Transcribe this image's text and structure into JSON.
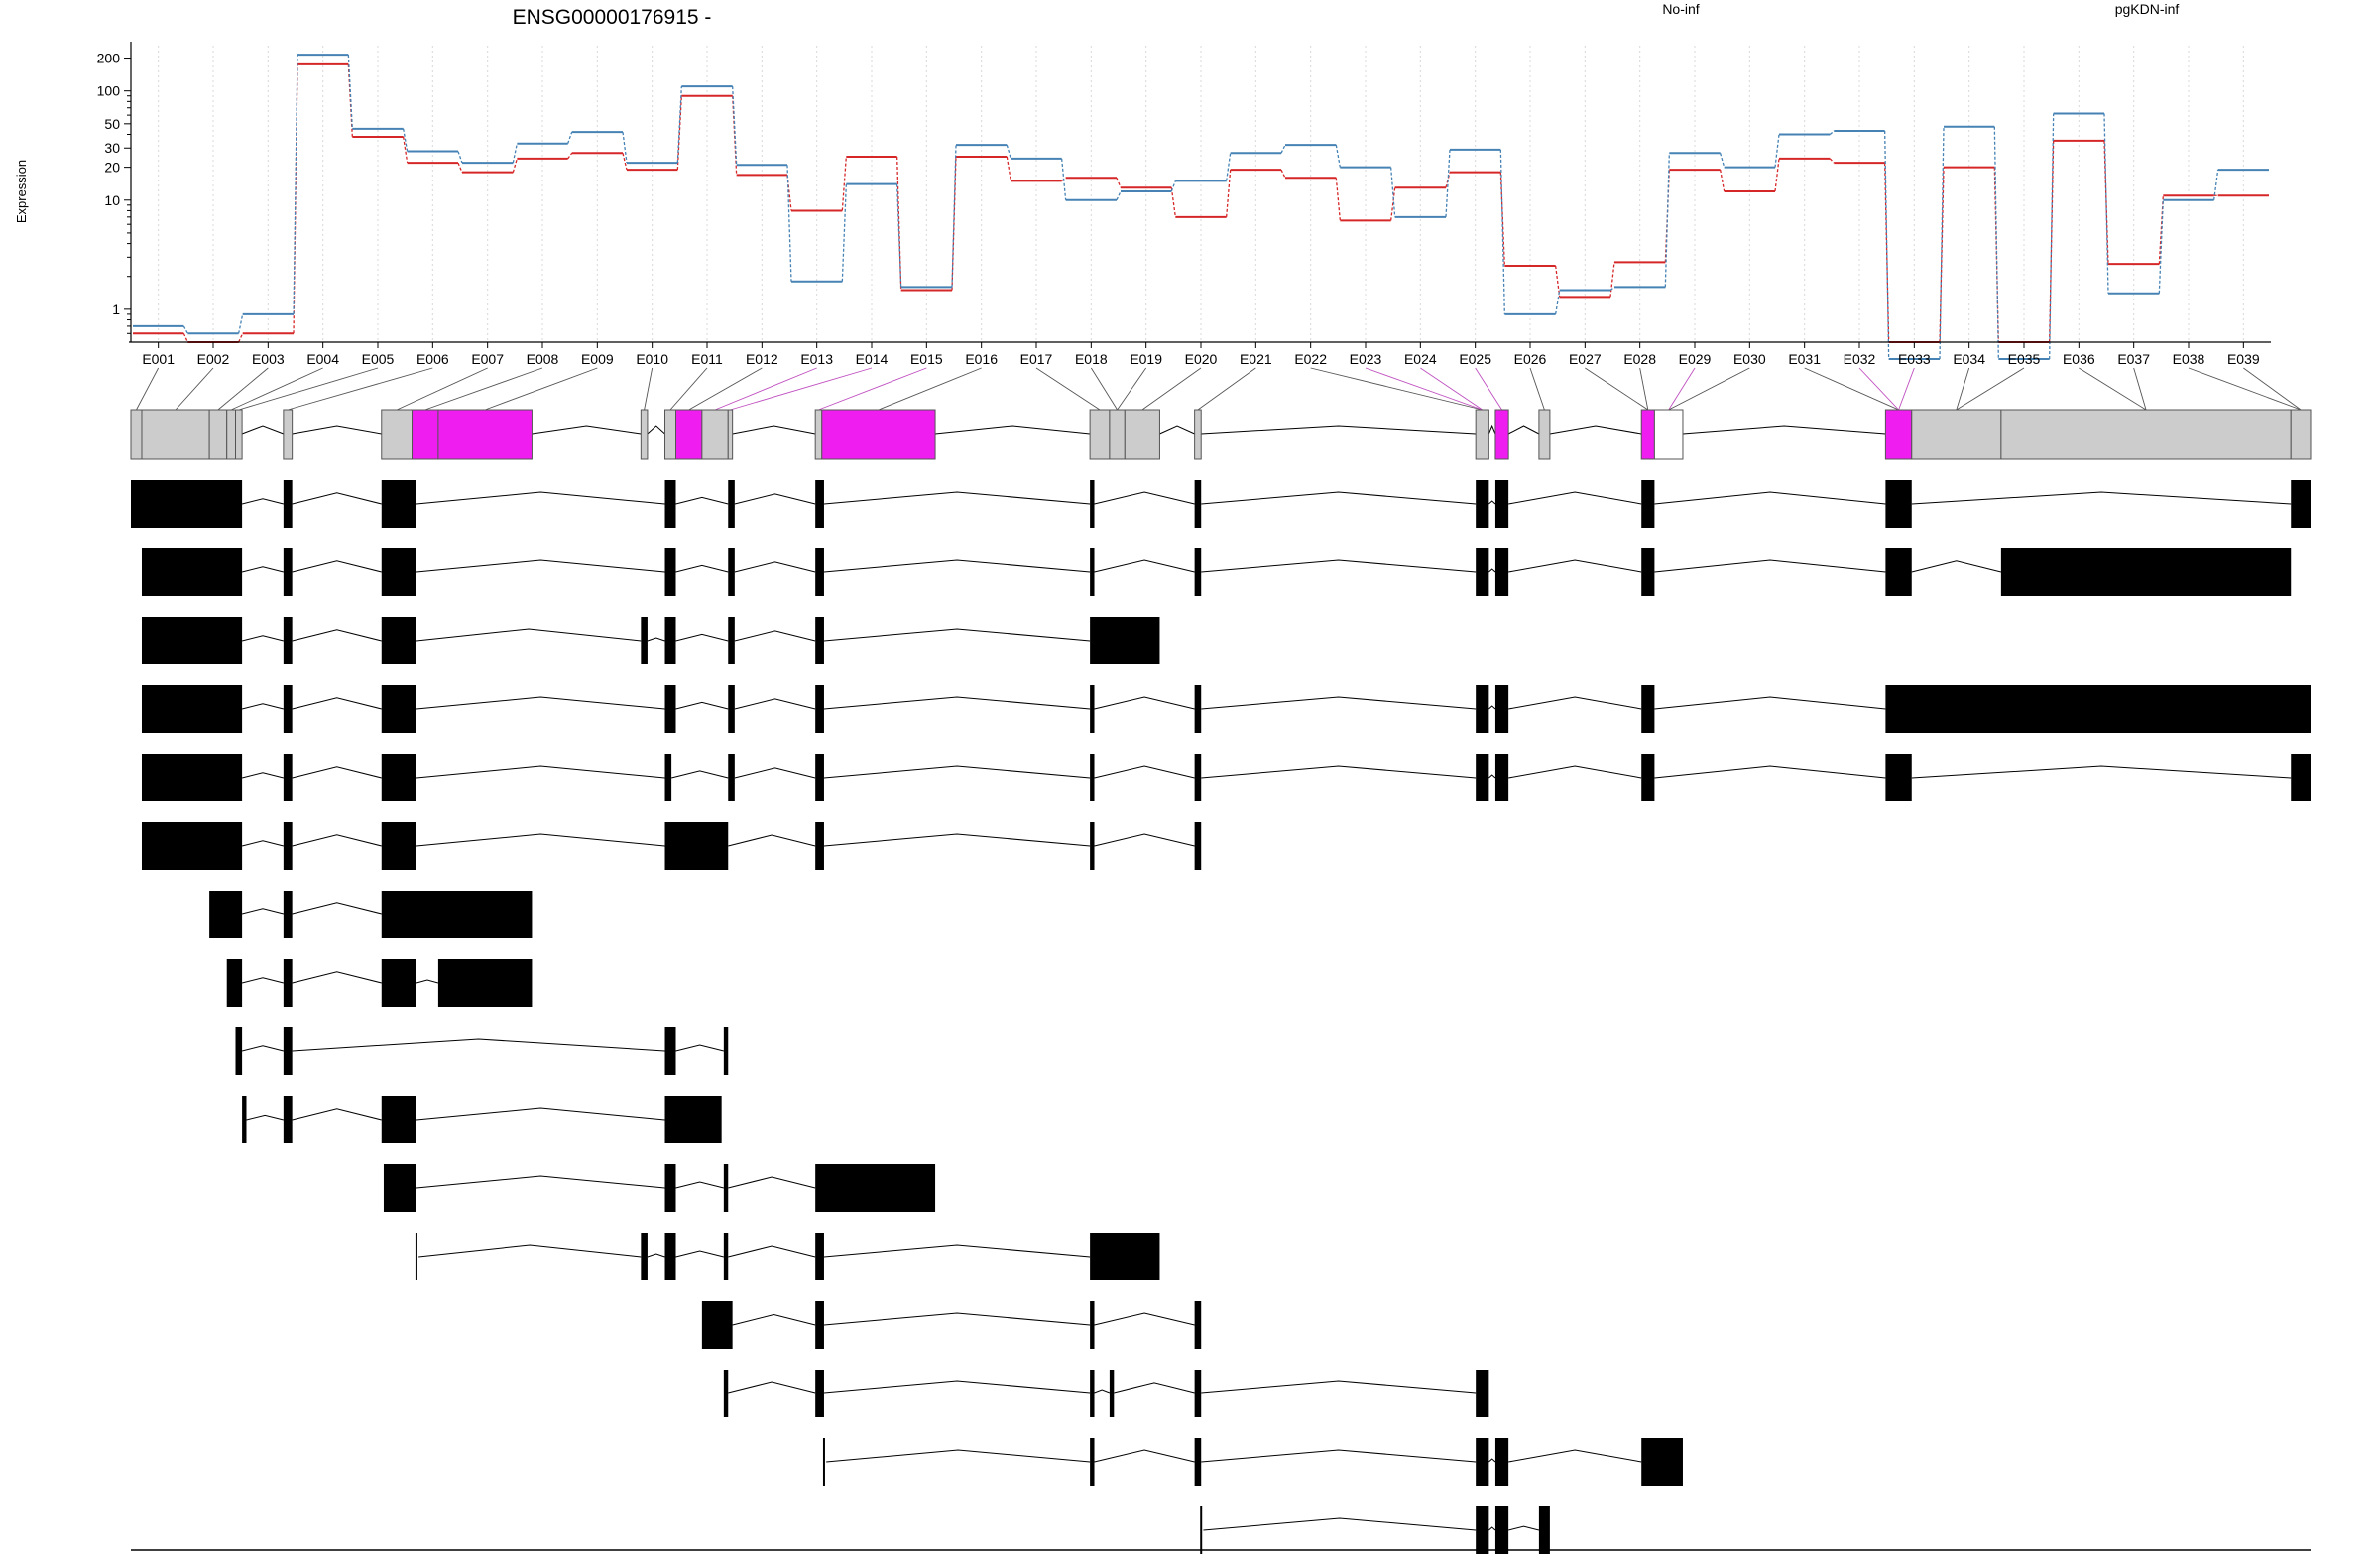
{
  "chart_data": {
    "type": "line",
    "title": "ENSG00000176915 -",
    "ylabel": "Expression",
    "yscale": "log",
    "ylim": [
      0.5,
      260
    ],
    "y_ticks": [
      "1",
      "10",
      "20",
      "30",
      "50",
      "100",
      "200"
    ],
    "grid": "vertical dotted",
    "legend": "top-right",
    "categories": [
      "E001",
      "E002",
      "E003",
      "E004",
      "E005",
      "E006",
      "E007",
      "E008",
      "E009",
      "E010",
      "E011",
      "E012",
      "E013",
      "E014",
      "E015",
      "E016",
      "E017",
      "E018",
      "E019",
      "E020",
      "E021",
      "E022",
      "E023",
      "E024",
      "E025",
      "E026",
      "E027",
      "E028",
      "E029",
      "E030",
      "E031",
      "E032",
      "E033",
      "E034",
      "E035",
      "E036",
      "E037",
      "E038",
      "E039"
    ],
    "series": [
      {
        "name": "No-inf",
        "color": "#d62728",
        "values": [
          0.6,
          0.5,
          0.6,
          175,
          38,
          22,
          18,
          24,
          27,
          19,
          90,
          17,
          8,
          25,
          1.5,
          25,
          15,
          16,
          13,
          7,
          19,
          16,
          6.5,
          13,
          18,
          2.5,
          1.3,
          2.7,
          19,
          12,
          24,
          22,
          0.5,
          20,
          0.5,
          35,
          2.6,
          11,
          11
        ]
      },
      {
        "name": "pgKDN-inf",
        "color": "#4682b4",
        "values": [
          0.7,
          0.6,
          0.9,
          215,
          45,
          28,
          22,
          33,
          42,
          22,
          110,
          21,
          1.8,
          14,
          1.6,
          32,
          24,
          10,
          12,
          15,
          27,
          32,
          20,
          7,
          29,
          0.9,
          1.5,
          1.6,
          27,
          20,
          40,
          43,
          0.35,
          47,
          0.35,
          62,
          1.4,
          10,
          19
        ]
      }
    ],
    "gene_model": {
      "x_ticks": [
        "132725503",
        "132729549",
        "132733594",
        "132737640",
        "132741686",
        "132745731",
        "132749777",
        "132753823",
        "132757868",
        "132761914"
      ],
      "highlight_color": "#f01df0",
      "transcript_color": "#000000"
    }
  }
}
